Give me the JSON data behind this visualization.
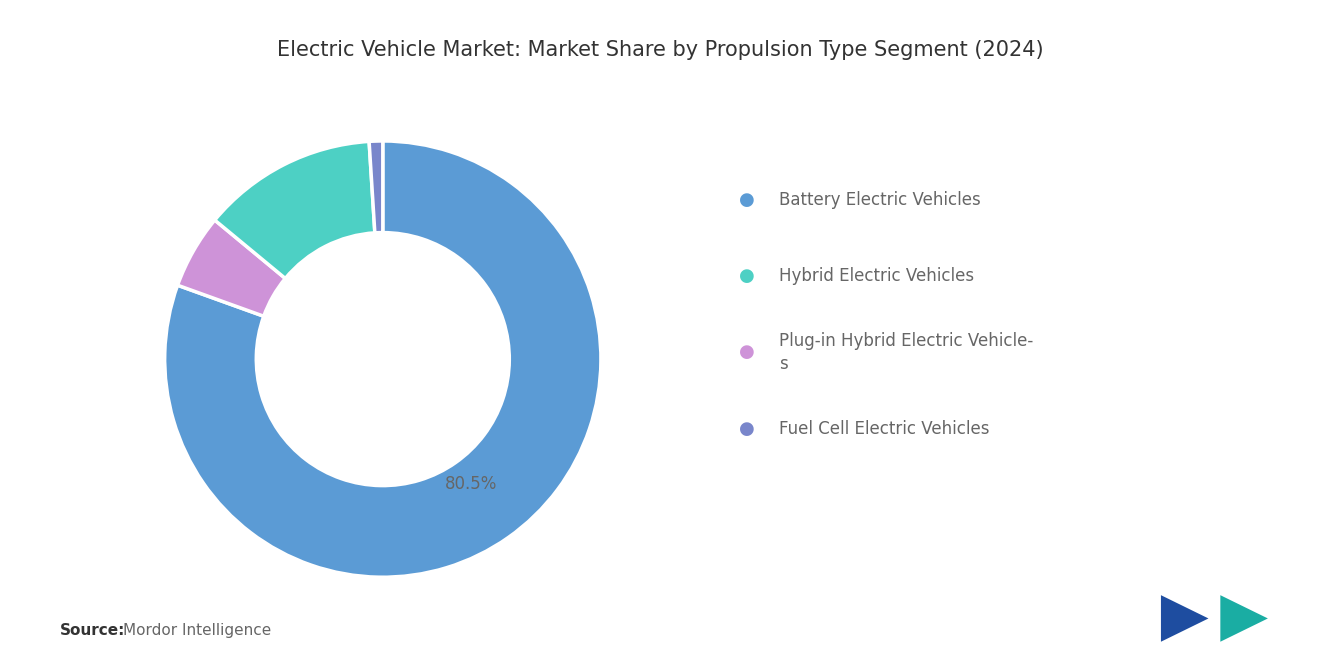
{
  "title": "Electric Vehicle Market: Market Share by Propulsion Type Segment (2024)",
  "title_fontsize": 15,
  "segments": [
    {
      "label": "Battery Electric Vehicles",
      "value": 80.5,
      "color": "#5B9BD5"
    },
    {
      "label": "Plug-in Hybrid Electric Vehicle-\ns",
      "value": 5.5,
      "color": "#CE93D8"
    },
    {
      "label": "Hybrid Electric Vehicles",
      "value": 13.0,
      "color": "#4DD0C4"
    },
    {
      "label": "Fuel Cell Electric Vehicles",
      "value": 1.0,
      "color": "#7986CB"
    }
  ],
  "label_80_5": "80.5%",
  "source_bold": "Source:",
  "source_text": "Mordor Intelligence",
  "background_color": "#FFFFFF",
  "text_color": "#666666",
  "legend_fontsize": 12,
  "label_fontsize": 12,
  "source_fontsize": 11
}
